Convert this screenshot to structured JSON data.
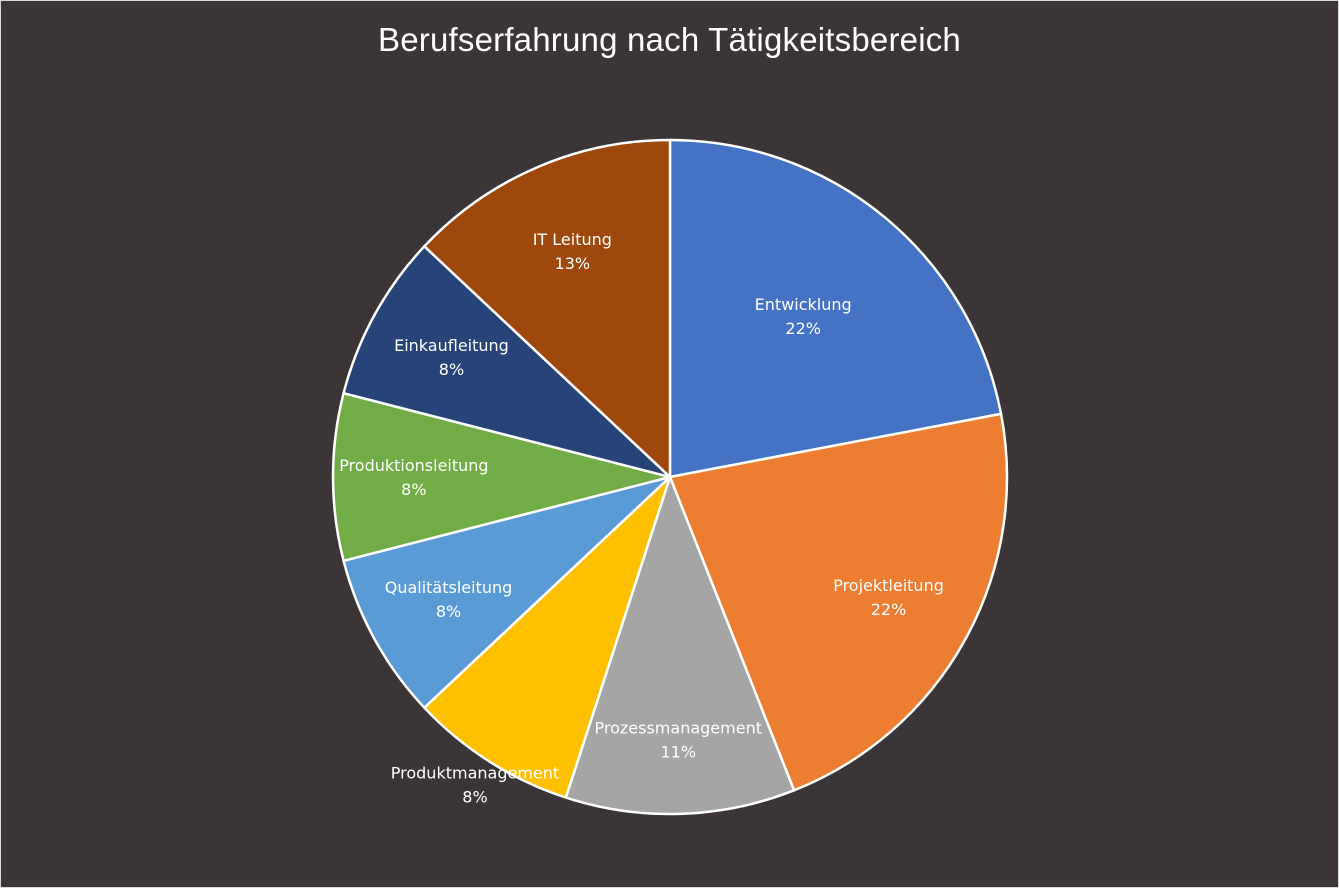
{
  "chart_data": {
    "type": "pie",
    "title": "Berufserfahrung nach Tätigkeitsbereich",
    "slices": [
      {
        "label": "Entwicklung",
        "value": 22,
        "display": "22%",
        "color": "#4472c4"
      },
      {
        "label": "Projektleitung",
        "value": 22,
        "display": "22%",
        "color": "#ed7d31"
      },
      {
        "label": "Prozessmanagement",
        "value": 11,
        "display": "11%",
        "color": "#a5a5a5"
      },
      {
        "label": "Produktmanagement",
        "value": 8,
        "display": "8%",
        "color": "#ffc000"
      },
      {
        "label": "Qualitätsleitung",
        "value": 8,
        "display": "8%",
        "color": "#5b9bd5"
      },
      {
        "label": "Produktionsleitung",
        "value": 8,
        "display": "8%",
        "color": "#70ad47"
      },
      {
        "label": "Einkaufleitung",
        "value": 8,
        "display": "8%",
        "color": "#264478"
      },
      {
        "label": "IT Leitung",
        "value": 13,
        "display": "13%",
        "color": "#9e480e"
      }
    ],
    "slice_border_color": "#ffffff",
    "background_color": "#3b3537",
    "legend": "none"
  }
}
